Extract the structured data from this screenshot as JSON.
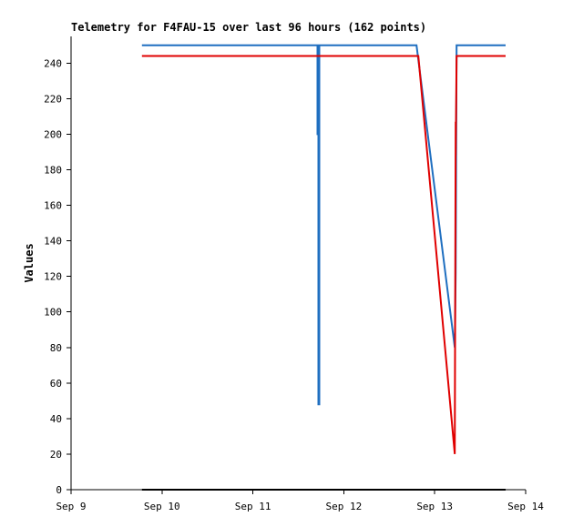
{
  "chart_data": {
    "type": "line",
    "title": "Telemetry for F4FAU-15 over last 96 hours (162 points)",
    "xlabel": "",
    "ylabel": "Values",
    "x_ticks": [
      "Sep 9",
      "Sep 10",
      "Sep 11",
      "Sep 12",
      "Sep 13",
      "Sep 14"
    ],
    "x_range_days": [
      9,
      14
    ],
    "ylim": [
      0,
      255
    ],
    "y_ticks": [
      0,
      20,
      40,
      60,
      80,
      100,
      120,
      140,
      160,
      180,
      200,
      220,
      240
    ],
    "grid": false,
    "series": [
      {
        "color": "#1f6fc0",
        "points": [
          [
            9.78,
            250
          ],
          [
            10.2,
            250
          ],
          [
            10.8,
            250
          ],
          [
            11.71,
            250
          ],
          [
            11.71,
            200
          ],
          [
            11.72,
            200
          ],
          [
            11.72,
            48
          ],
          [
            11.73,
            48
          ],
          [
            11.73,
            250
          ],
          [
            12.0,
            250
          ],
          [
            12.5,
            250
          ],
          [
            12.8,
            250
          ],
          [
            13.22,
            80
          ],
          [
            13.23,
            122
          ],
          [
            13.24,
            250
          ],
          [
            13.5,
            250
          ],
          [
            13.78,
            250
          ]
        ]
      },
      {
        "color": "#e00000",
        "points": [
          [
            9.78,
            244
          ],
          [
            10.5,
            244
          ],
          [
            11.2,
            244
          ],
          [
            12.0,
            244
          ],
          [
            12.82,
            244
          ],
          [
            13.22,
            20
          ],
          [
            13.23,
            207
          ],
          [
            13.23,
            188
          ],
          [
            13.24,
            244
          ],
          [
            13.5,
            244
          ],
          [
            13.78,
            244
          ]
        ]
      },
      {
        "color": "#000000",
        "points": [
          [
            9.78,
            0
          ],
          [
            13.78,
            0
          ]
        ]
      }
    ]
  }
}
